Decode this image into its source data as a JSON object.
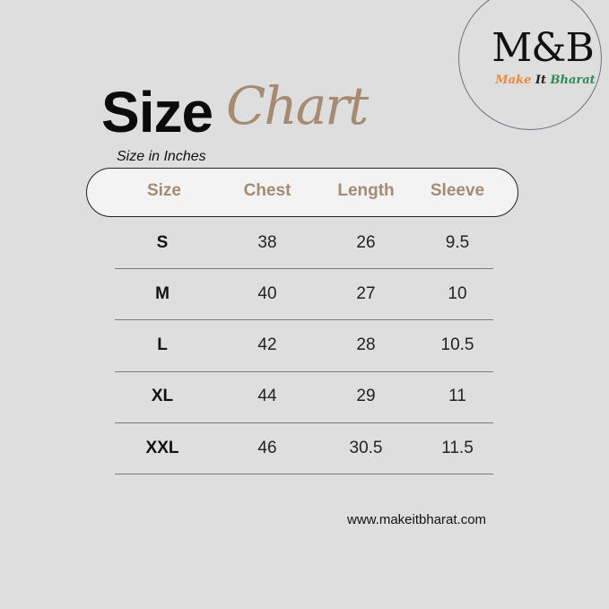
{
  "logo": {
    "mark": "M&B",
    "tagline": [
      "Make",
      "It",
      "Bharat"
    ],
    "tagline_colors": [
      "#e8883a",
      "#222222",
      "#2e8b57"
    ]
  },
  "title": {
    "bold": "Size",
    "script": "Chart"
  },
  "subtitle": "Size in Inches",
  "table": {
    "headers": [
      "Size",
      "Chest",
      "Length",
      "Sleeve"
    ],
    "rows": [
      [
        "S",
        "38",
        "26",
        "9.5"
      ],
      [
        "M",
        "40",
        "27",
        "10"
      ],
      [
        "L",
        "42",
        "28",
        "10.5"
      ],
      [
        "XL",
        "44",
        "29",
        "11"
      ],
      [
        "XXL",
        "46",
        "30.5",
        "11.5"
      ]
    ]
  },
  "website": "www.makeitbharat.com",
  "colors": {
    "accent": "#a68a72",
    "background": "#dedede"
  }
}
